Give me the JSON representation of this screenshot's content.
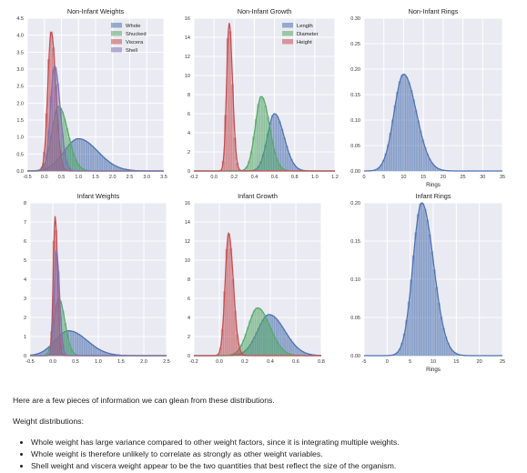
{
  "charts": [
    {
      "type": "histogram",
      "title": "Non-Infant Weights",
      "xlabel": "",
      "xlim": [
        -0.5,
        3.5
      ],
      "xticks": [
        "-0.5",
        "0.0",
        "0.5",
        "1.0",
        "1.5",
        "2.0",
        "2.5",
        "3.0",
        "3.5"
      ],
      "ylim": [
        0,
        4.5
      ],
      "yticks": [
        "0.0",
        "0.5",
        "1.0",
        "1.5",
        "2.0",
        "2.5",
        "3.0",
        "3.5",
        "4.0",
        "4.5"
      ],
      "grid": true,
      "legend": "top-right",
      "series": [
        {
          "name": "Whole",
          "color": "#4c72b0",
          "peak_x": 1.0,
          "peak_y": 0.95,
          "spread": 0.42
        },
        {
          "name": "Shucked",
          "color": "#55a868",
          "peak_x": 0.42,
          "peak_y": 1.9,
          "spread": 0.2
        },
        {
          "name": "Viscera",
          "color": "#c44e52",
          "peak_x": 0.2,
          "peak_y": 4.1,
          "spread": 0.1
        },
        {
          "name": "Shell",
          "color": "#8172b2",
          "peak_x": 0.3,
          "peak_y": 3.1,
          "spread": 0.12
        }
      ]
    },
    {
      "type": "histogram",
      "title": "Non-Infant Growth",
      "xlabel": "",
      "xlim": [
        -0.2,
        1.2
      ],
      "xticks": [
        "-0.2",
        "0.0",
        "0.2",
        "0.4",
        "0.6",
        "0.8",
        "1.0",
        "1.2"
      ],
      "ylim": [
        0,
        16
      ],
      "yticks": [
        "0",
        "2",
        "4",
        "6",
        "8",
        "10",
        "12",
        "14",
        "16"
      ],
      "grid": true,
      "legend": "top-right",
      "series": [
        {
          "name": "Length",
          "color": "#4c72b0",
          "peak_x": 0.6,
          "peak_y": 6.0,
          "spread": 0.07
        },
        {
          "name": "Diameter",
          "color": "#55a868",
          "peak_x": 0.47,
          "peak_y": 7.8,
          "spread": 0.06
        },
        {
          "name": "Height",
          "color": "#c44e52",
          "peak_x": 0.15,
          "peak_y": 15.5,
          "spread": 0.025
        }
      ]
    },
    {
      "type": "histogram",
      "title": "Non-Infant Rings",
      "xlabel": "Rings",
      "xlim": [
        0,
        35
      ],
      "xticks": [
        "0",
        "5",
        "10",
        "15",
        "20",
        "25",
        "30",
        "35"
      ],
      "ylim": [
        0,
        0.3
      ],
      "yticks": [
        "0.00",
        "0.05",
        "0.10",
        "0.15",
        "0.20",
        "0.25",
        "0.30"
      ],
      "grid": true,
      "legend": "",
      "series": [
        {
          "name": "",
          "color": "#4c72b0",
          "peak_x": 10,
          "peak_y": 0.19,
          "spread": 2.4
        }
      ]
    },
    {
      "type": "histogram",
      "title": "Infant Weights",
      "xlabel": "",
      "xlim": [
        -0.5,
        2.5
      ],
      "xticks": [
        "-0.5",
        "0.0",
        "0.5",
        "1.0",
        "1.5",
        "2.0",
        "2.5"
      ],
      "ylim": [
        0,
        8
      ],
      "yticks": [
        "0",
        "1",
        "2",
        "3",
        "4",
        "5",
        "6",
        "7",
        "8"
      ],
      "grid": true,
      "legend": "",
      "series": [
        {
          "name": "",
          "color": "#4c72b0",
          "peak_x": 0.35,
          "peak_y": 1.3,
          "spread": 0.3
        },
        {
          "name": "",
          "color": "#55a868",
          "peak_x": 0.13,
          "peak_y": 3.0,
          "spread": 0.1
        },
        {
          "name": "",
          "color": "#c44e52",
          "peak_x": 0.05,
          "peak_y": 7.3,
          "spread": 0.04
        },
        {
          "name": "",
          "color": "#8172b2",
          "peak_x": 0.08,
          "peak_y": 5.5,
          "spread": 0.05
        }
      ]
    },
    {
      "type": "histogram",
      "title": "Infant Growth",
      "xlabel": "",
      "xlim": [
        -0.2,
        0.9
      ],
      "xticks": [
        "-0.2",
        "0.0",
        "0.2",
        "0.4",
        "0.6",
        "0.8"
      ],
      "ylim": [
        0,
        16
      ],
      "yticks": [
        "0",
        "2",
        "4",
        "6",
        "8",
        "10",
        "12",
        "14",
        "16"
      ],
      "grid": true,
      "legend": "",
      "series": [
        {
          "name": "",
          "color": "#4c72b0",
          "peak_x": 0.45,
          "peak_y": 4.3,
          "spread": 0.1
        },
        {
          "name": "",
          "color": "#55a868",
          "peak_x": 0.35,
          "peak_y": 5.0,
          "spread": 0.08
        },
        {
          "name": "",
          "color": "#c44e52",
          "peak_x": 0.1,
          "peak_y": 12.8,
          "spread": 0.03
        }
      ]
    },
    {
      "type": "histogram",
      "title": "Infant Rings",
      "xlabel": "Rings",
      "xlim": [
        -5,
        25
      ],
      "xticks": [
        "-5",
        "0",
        "5",
        "10",
        "15",
        "20",
        "25"
      ],
      "ylim": [
        0,
        0.2
      ],
      "yticks": [
        "0.00",
        "0.05",
        "0.10",
        "0.15",
        "0.20"
      ],
      "grid": true,
      "legend": "",
      "series": [
        {
          "name": "",
          "color": "#4c72b0",
          "peak_x": 7.5,
          "peak_y": 0.2,
          "spread": 1.9
        }
      ]
    }
  ],
  "text": {
    "intro": "Here are a few pieces of information we can glean from these distributions.",
    "weight_heading": "Weight distributions:",
    "bullets": [
      "Whole weight has large variance compared to other weight factors, since it is integrating multiple weights.",
      "Whole weight is therefore unlikely to correlate as strongly as other weight variables.",
      "Shell weight and viscera weight appear to be the two quantities that best reflect the size of the organism."
    ]
  }
}
